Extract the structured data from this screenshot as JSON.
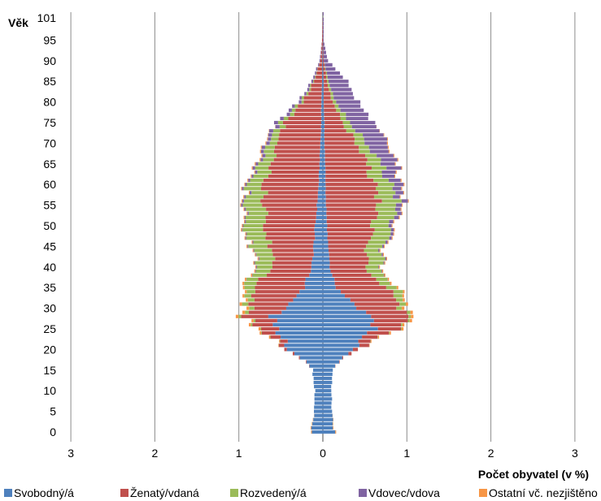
{
  "chart_data": {
    "type": "bar",
    "subtype": "population-pyramid-stacked",
    "title": "",
    "ylabel": "Věk",
    "xlabel": "Počet obyvatel (v %)",
    "x_tick_labels": [
      "3",
      "2",
      "1",
      "0",
      "1",
      "2",
      "3"
    ],
    "y_tick_labels": [
      "0",
      "5",
      "10",
      "15",
      "20",
      "25",
      "30",
      "35",
      "40",
      "45",
      "50",
      "55",
      "60",
      "65",
      "70",
      "75",
      "80",
      "85",
      "90",
      "95",
      "101"
    ],
    "xlim_left": [
      3,
      0
    ],
    "xlim_right": [
      0,
      3
    ],
    "grid": "vertical",
    "legend_position": "bottom",
    "series": [
      {
        "name": "Svobodný/á",
        "color": "#4F81BD"
      },
      {
        "name": "Ženatý/vdaná",
        "color": "#C0504D"
      },
      {
        "name": "Rozvedený/á",
        "color": "#9BBB59"
      },
      {
        "name": "Vdovec/vdova",
        "color": "#8064A2"
      },
      {
        "name": "Ostatní vč. nezjištěno",
        "color": "#F79646"
      }
    ],
    "male_profile": {
      "ages": [
        0,
        5,
        10,
        15,
        18,
        20,
        25,
        28,
        30,
        33,
        35,
        40,
        45,
        50,
        55,
        60,
        65,
        70,
        75,
        80,
        85,
        90,
        95,
        101
      ],
      "single": [
        0.14,
        0.1,
        0.1,
        0.12,
        0.25,
        0.4,
        0.55,
        0.6,
        0.45,
        0.32,
        0.23,
        0.13,
        0.11,
        0.09,
        0.07,
        0.05,
        0.04,
        0.03,
        0.02,
        0.02,
        0.01,
        0.01,
        0.0,
        0.0
      ],
      "married": [
        0,
        0,
        0,
        0,
        0.01,
        0.03,
        0.2,
        0.32,
        0.42,
        0.55,
        0.57,
        0.47,
        0.5,
        0.6,
        0.63,
        0.63,
        0.56,
        0.5,
        0.42,
        0.22,
        0.09,
        0.02,
        0.01,
        0.0
      ],
      "divorced": [
        0,
        0,
        0,
        0,
        0,
        0,
        0.01,
        0.03,
        0.06,
        0.09,
        0.12,
        0.19,
        0.23,
        0.24,
        0.22,
        0.18,
        0.14,
        0.1,
        0.06,
        0.03,
        0.01,
        0.0,
        0.0,
        0.0
      ],
      "widowed": [
        0,
        0,
        0,
        0,
        0,
        0,
        0,
        0,
        0,
        0,
        0,
        0.01,
        0.01,
        0.01,
        0.02,
        0.02,
        0.03,
        0.04,
        0.05,
        0.03,
        0.02,
        0.01,
        0.0,
        0.0
      ],
      "other": [
        0.01,
        0,
        0,
        0,
        0,
        0,
        0.02,
        0.03,
        0.03,
        0.02,
        0.02,
        0.01,
        0.01,
        0.01,
        0.01,
        0.01,
        0.01,
        0.01,
        0.0,
        0.0,
        0.0,
        0.0,
        0.0,
        0.0
      ]
    },
    "female_profile": {
      "ages": [
        0,
        5,
        10,
        15,
        18,
        20,
        25,
        28,
        30,
        33,
        35,
        40,
        45,
        50,
        55,
        60,
        65,
        70,
        75,
        80,
        85,
        90,
        95,
        101
      ],
      "single": [
        0.14,
        0.1,
        0.1,
        0.11,
        0.22,
        0.38,
        0.6,
        0.6,
        0.4,
        0.25,
        0.16,
        0.08,
        0.06,
        0.05,
        0.04,
        0.03,
        0.03,
        0.02,
        0.02,
        0.01,
        0.01,
        0.0,
        0.0,
        0.0
      ],
      "married": [
        0,
        0,
        0,
        0,
        0.01,
        0.06,
        0.3,
        0.42,
        0.52,
        0.6,
        0.55,
        0.43,
        0.45,
        0.55,
        0.62,
        0.58,
        0.48,
        0.38,
        0.22,
        0.1,
        0.04,
        0.01,
        0.0,
        0.0
      ],
      "divorced": [
        0,
        0,
        0,
        0,
        0,
        0,
        0.01,
        0.03,
        0.06,
        0.1,
        0.13,
        0.17,
        0.19,
        0.22,
        0.22,
        0.2,
        0.16,
        0.12,
        0.08,
        0.04,
        0.02,
        0.0,
        0.0,
        0.0
      ],
      "widowed": [
        0,
        0,
        0,
        0,
        0,
        0,
        0,
        0,
        0,
        0,
        0,
        0.01,
        0.02,
        0.04,
        0.07,
        0.12,
        0.18,
        0.26,
        0.28,
        0.27,
        0.22,
        0.05,
        0.01,
        0.01
      ],
      "other": [
        0.01,
        0,
        0,
        0,
        0,
        0,
        0.02,
        0.03,
        0.03,
        0.02,
        0.02,
        0.01,
        0.01,
        0.01,
        0.01,
        0.01,
        0.01,
        0.01,
        0.0,
        0.0,
        0.0,
        0.0,
        0.0,
        0.0
      ]
    }
  }
}
